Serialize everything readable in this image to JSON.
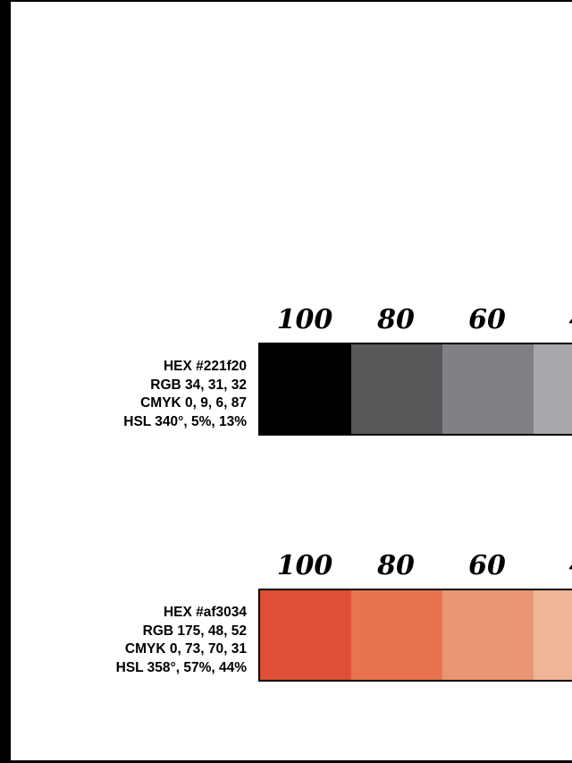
{
  "tints": [
    "100",
    "80",
    "60",
    "4"
  ],
  "colors": [
    {
      "hex": "HEX #221f20",
      "rgb": "RGB 34, 31, 32",
      "cmyk": "CMYK 0, 9, 6, 87",
      "hsl": "HSL 340°, 5%, 13%",
      "swatches": [
        "#000000",
        "#58585a",
        "#808184",
        "#a7a8ab"
      ]
    },
    {
      "hex": "HEX #af3034",
      "rgb": "RGB 175, 48, 52",
      "cmyk": "CMYK 0, 73, 70, 31",
      "hsl": "HSL 358°, 57%, 44%",
      "swatches": [
        "#de4f35",
        "#e7744f",
        "#ea9672",
        "#f0b597"
      ]
    }
  ]
}
